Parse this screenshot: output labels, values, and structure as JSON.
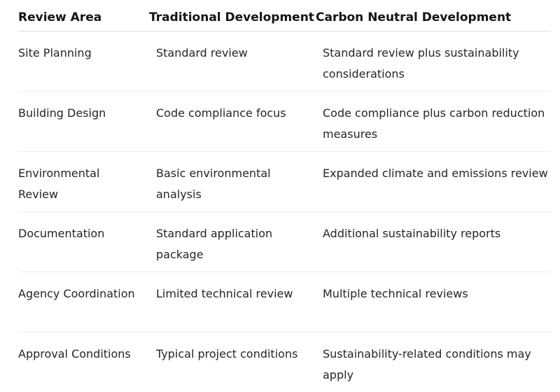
{
  "table": {
    "headers": [
      "Review Area",
      "Traditional Development",
      "Carbon Neutral Development"
    ],
    "rows": [
      [
        "Site Planning",
        "Standard review",
        "Standard review plus sustainability considerations"
      ],
      [
        "Building Design",
        "Code compliance focus",
        "Code compliance plus carbon reduction measures"
      ],
      [
        "Environmental Review",
        "Basic environmental analysis",
        "Expanded climate and emissions review"
      ],
      [
        "Documentation",
        "Standard application package",
        "Additional sustainability reports"
      ],
      [
        "Agency Coordination",
        "Limited technical review",
        "Multiple technical reviews"
      ],
      [
        "Approval Conditions",
        "Typical project conditions",
        "Sustainability-related conditions may apply"
      ]
    ]
  }
}
